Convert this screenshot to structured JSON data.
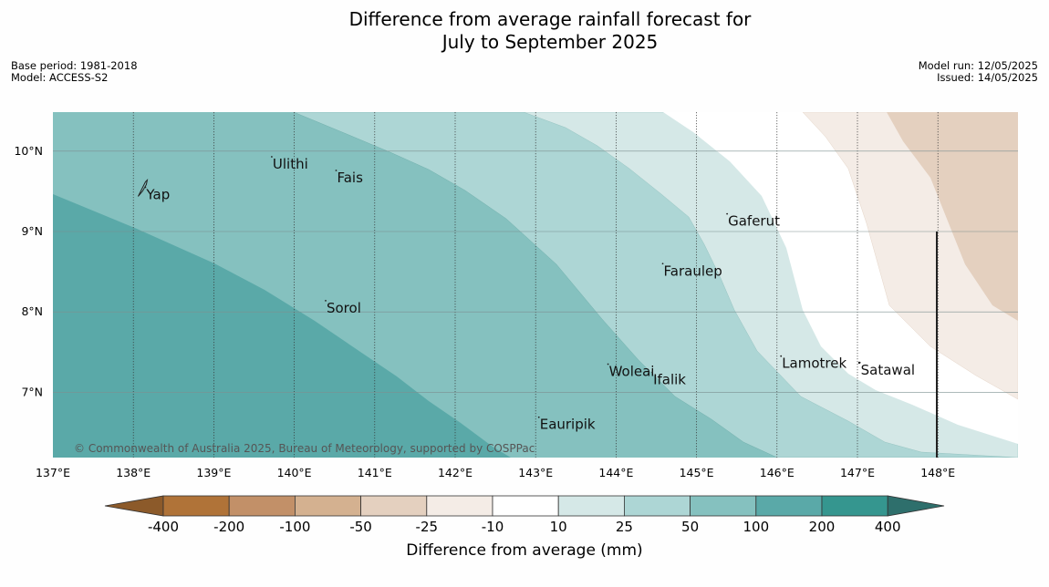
{
  "title_line1": "Difference from average rainfall forecast for",
  "title_line2": "July to September 2025",
  "base_period": "Base period: 1981-2018",
  "model": "Model: ACCESS-S2",
  "model_run": "Model run: 12/05/2025",
  "issued": "Issued: 14/05/2025",
  "copyright": "© Commonwealth of Australia 2025, Bureau of Meteorology, supported by COSPPac",
  "map": {
    "lon_range": [
      137,
      149
    ],
    "lat_range": [
      6.3,
      10.5
    ],
    "lon_ticks": [
      "137°E",
      "138°E",
      "139°E",
      "140°E",
      "141°E",
      "142°E",
      "143°E",
      "144°E",
      "145°E",
      "146°E",
      "147°E",
      "148°E"
    ],
    "lat_ticks": [
      "10°N",
      "9°N",
      "8°N",
      "7°N"
    ],
    "places": [
      {
        "name": "Yap",
        "lon": 138.15,
        "lat": 9.55
      },
      {
        "name": "Ulithi",
        "lon": 139.72,
        "lat": 9.93
      },
      {
        "name": "Fais",
        "lon": 140.52,
        "lat": 9.76
      },
      {
        "name": "Gaferut",
        "lon": 145.38,
        "lat": 9.22
      },
      {
        "name": "Faraulep",
        "lon": 144.58,
        "lat": 8.6
      },
      {
        "name": "Sorol",
        "lon": 140.39,
        "lat": 8.14
      },
      {
        "name": "Lamotrek",
        "lon": 146.05,
        "lat": 7.45
      },
      {
        "name": "Woleai",
        "lon": 143.9,
        "lat": 7.35
      },
      {
        "name": "Ifalik",
        "lon": 144.45,
        "lat": 7.25
      },
      {
        "name": "Satawal",
        "lon": 147.03,
        "lat": 7.37
      },
      {
        "name": "Eauripik",
        "lon": 143.04,
        "lat": 6.69
      }
    ]
  },
  "colorbar": {
    "labels": [
      "-400",
      "-200",
      "-100",
      "-50",
      "-25",
      "-10",
      "10",
      "25",
      "50",
      "100",
      "200",
      "400"
    ],
    "colors": {
      "below_-400": "#8c5a2a",
      "-400_-200": "#b07338",
      "-200_-100": "#c29068",
      "-100_-50": "#d4b190",
      "-50_-25": "#e4d0bf",
      "-25_-10": "#f4ece6",
      "-10_10": "#ffffff",
      "10_25": "#d5e8e7",
      "25_50": "#add6d5",
      "50_100": "#85c1bf",
      "100_200": "#5aa9a8",
      "200_400": "#35968f",
      "above_400": "#2e6f6c"
    },
    "title": "Difference from average (mm)"
  }
}
